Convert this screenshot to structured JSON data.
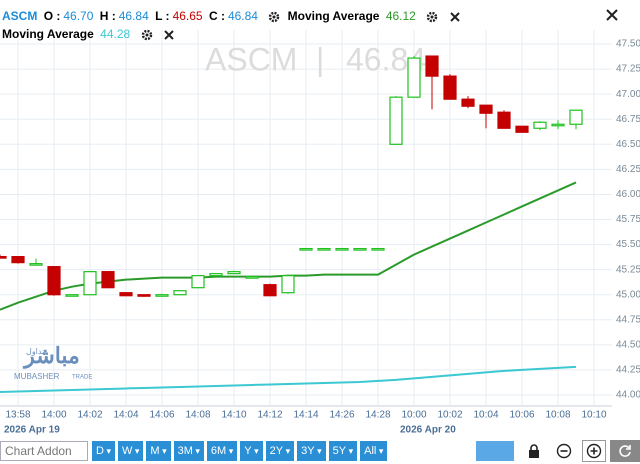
{
  "header": {
    "symbol": "ASCM",
    "o_label": "O :",
    "open": "46.70",
    "h_label": "H :",
    "high": "46.84",
    "l_label": "L :",
    "low": "46.65",
    "c_label": "C :",
    "close": "46.84",
    "ma1_value": "46.12",
    "ma2_value": "44.28",
    "watermark_sep": "|"
  },
  "logo": {
    "arabic": "مباشر",
    "arabic_small": "تداول",
    "latin": "MUBASHER",
    "latin_small": "TRADE"
  },
  "chart_data": {
    "type": "candlestick",
    "categories": [
      null,
      "13:58",
      null,
      "14:00",
      null,
      "14:02",
      null,
      "14:04",
      null,
      "14:06",
      null,
      "14:08",
      null,
      "14:10",
      null,
      "14:12",
      null,
      "14:14",
      null,
      "14:26",
      null,
      "14:28",
      null,
      "10:00",
      null,
      "10:02",
      null,
      "10:04",
      null,
      "10:06",
      null,
      "10:08",
      null,
      "10:10"
    ],
    "dates": [
      "2026 Apr 19",
      null,
      null,
      null,
      null,
      null,
      null,
      null,
      null,
      null,
      null,
      null,
      null,
      null,
      null,
      null,
      null,
      null,
      null,
      null,
      null,
      null,
      "2026 Apr 20",
      null,
      null,
      null,
      null,
      null,
      null,
      null,
      null,
      null,
      null,
      null
    ],
    "open": [
      45.38,
      45.38,
      45.3,
      45.28,
      45.0,
      45.0,
      45.23,
      45.02,
      45.0,
      45.0,
      45.0,
      45.07,
      45.19,
      45.21,
      45.18,
      45.1,
      45.02,
      45.46,
      45.46,
      45.46,
      45.46,
      45.46,
      46.5,
      46.97,
      47.38,
      47.18,
      46.95,
      46.89,
      46.82,
      46.68,
      46.66,
      46.7,
      46.7,
      null
    ],
    "high": [
      45.4,
      45.38,
      45.36,
      45.28,
      45.0,
      45.23,
      45.23,
      45.02,
      45.0,
      45.01,
      45.04,
      45.19,
      45.21,
      45.24,
      45.18,
      45.11,
      45.19,
      45.46,
      45.46,
      45.46,
      45.46,
      45.46,
      46.98,
      47.38,
      47.38,
      47.2,
      46.98,
      46.89,
      46.84,
      46.68,
      46.73,
      46.74,
      46.84,
      null
    ],
    "low": [
      45.37,
      45.31,
      45.29,
      44.99,
      45.0,
      45.0,
      45.07,
      44.99,
      44.98,
      45.0,
      45.0,
      45.07,
      45.19,
      45.21,
      45.18,
      44.99,
      45.01,
      45.46,
      45.46,
      45.46,
      45.46,
      45.46,
      46.5,
      46.97,
      46.85,
      46.95,
      46.86,
      46.66,
      46.66,
      46.62,
      46.64,
      46.65,
      46.65,
      null
    ],
    "close": [
      45.37,
      45.32,
      45.31,
      45.0,
      45.0,
      45.23,
      45.07,
      44.99,
      44.99,
      45.0,
      45.04,
      45.19,
      45.21,
      45.23,
      45.18,
      44.99,
      45.19,
      45.46,
      45.46,
      45.46,
      45.46,
      45.46,
      46.97,
      47.36,
      47.18,
      46.95,
      46.88,
      46.81,
      46.66,
      46.62,
      46.72,
      46.7,
      46.84,
      null
    ],
    "up_color": "#1fc01f",
    "down_color": "#c40000",
    "series": [
      {
        "name": "Moving Average",
        "color": "#2a9a2a",
        "values": [
          44.85,
          44.92,
          44.98,
          45.04,
          45.08,
          45.11,
          45.13,
          45.15,
          45.16,
          45.17,
          45.17,
          45.17,
          45.18,
          45.18,
          45.18,
          45.18,
          45.19,
          45.19,
          45.2,
          45.2,
          45.2,
          45.2,
          45.3,
          45.4,
          45.48,
          45.56,
          45.64,
          45.72,
          45.8,
          45.88,
          45.96,
          46.04,
          46.12,
          null
        ]
      },
      {
        "name": "Moving Average",
        "color": "#3cc8d2",
        "values": [
          44.03,
          44.035,
          44.04,
          44.045,
          44.05,
          44.055,
          44.06,
          44.065,
          44.07,
          44.075,
          44.08,
          44.085,
          44.09,
          44.095,
          44.1,
          44.105,
          44.11,
          44.115,
          44.12,
          44.125,
          44.13,
          44.14,
          44.15,
          44.165,
          44.18,
          44.195,
          44.21,
          44.225,
          44.24,
          44.25,
          44.26,
          44.27,
          44.28,
          null
        ]
      }
    ],
    "ylim": [
      43.9,
      47.64
    ],
    "yticks": [
      {
        "value": 44,
        "label": "44.00"
      },
      {
        "value": 44.25,
        "label": "44.25"
      },
      {
        "value": 44.5,
        "label": "44.50"
      },
      {
        "value": 44.75,
        "label": "44.75"
      },
      {
        "value": 45,
        "label": "45.00"
      },
      {
        "value": 45.25,
        "label": "45.25"
      },
      {
        "value": 45.5,
        "label": "45.50"
      },
      {
        "value": 45.75,
        "label": "45.75"
      },
      {
        "value": 46,
        "label": "46.00"
      },
      {
        "value": 46.25,
        "label": "46.25"
      },
      {
        "value": 46.5,
        "label": "46.50"
      },
      {
        "value": 46.75,
        "label": "46.75"
      },
      {
        "value": 47,
        "label": "47.00"
      },
      {
        "value": 47.25,
        "label": "47.25"
      },
      {
        "value": 47.5,
        "label": "47.50"
      }
    ],
    "grid": true
  },
  "toolbar": {
    "addon": "Chart Addon",
    "ranges": [
      "D",
      "W",
      "M",
      "3M",
      "6M",
      "Y",
      "2Y",
      "3Y",
      "5Y",
      "All"
    ]
  }
}
